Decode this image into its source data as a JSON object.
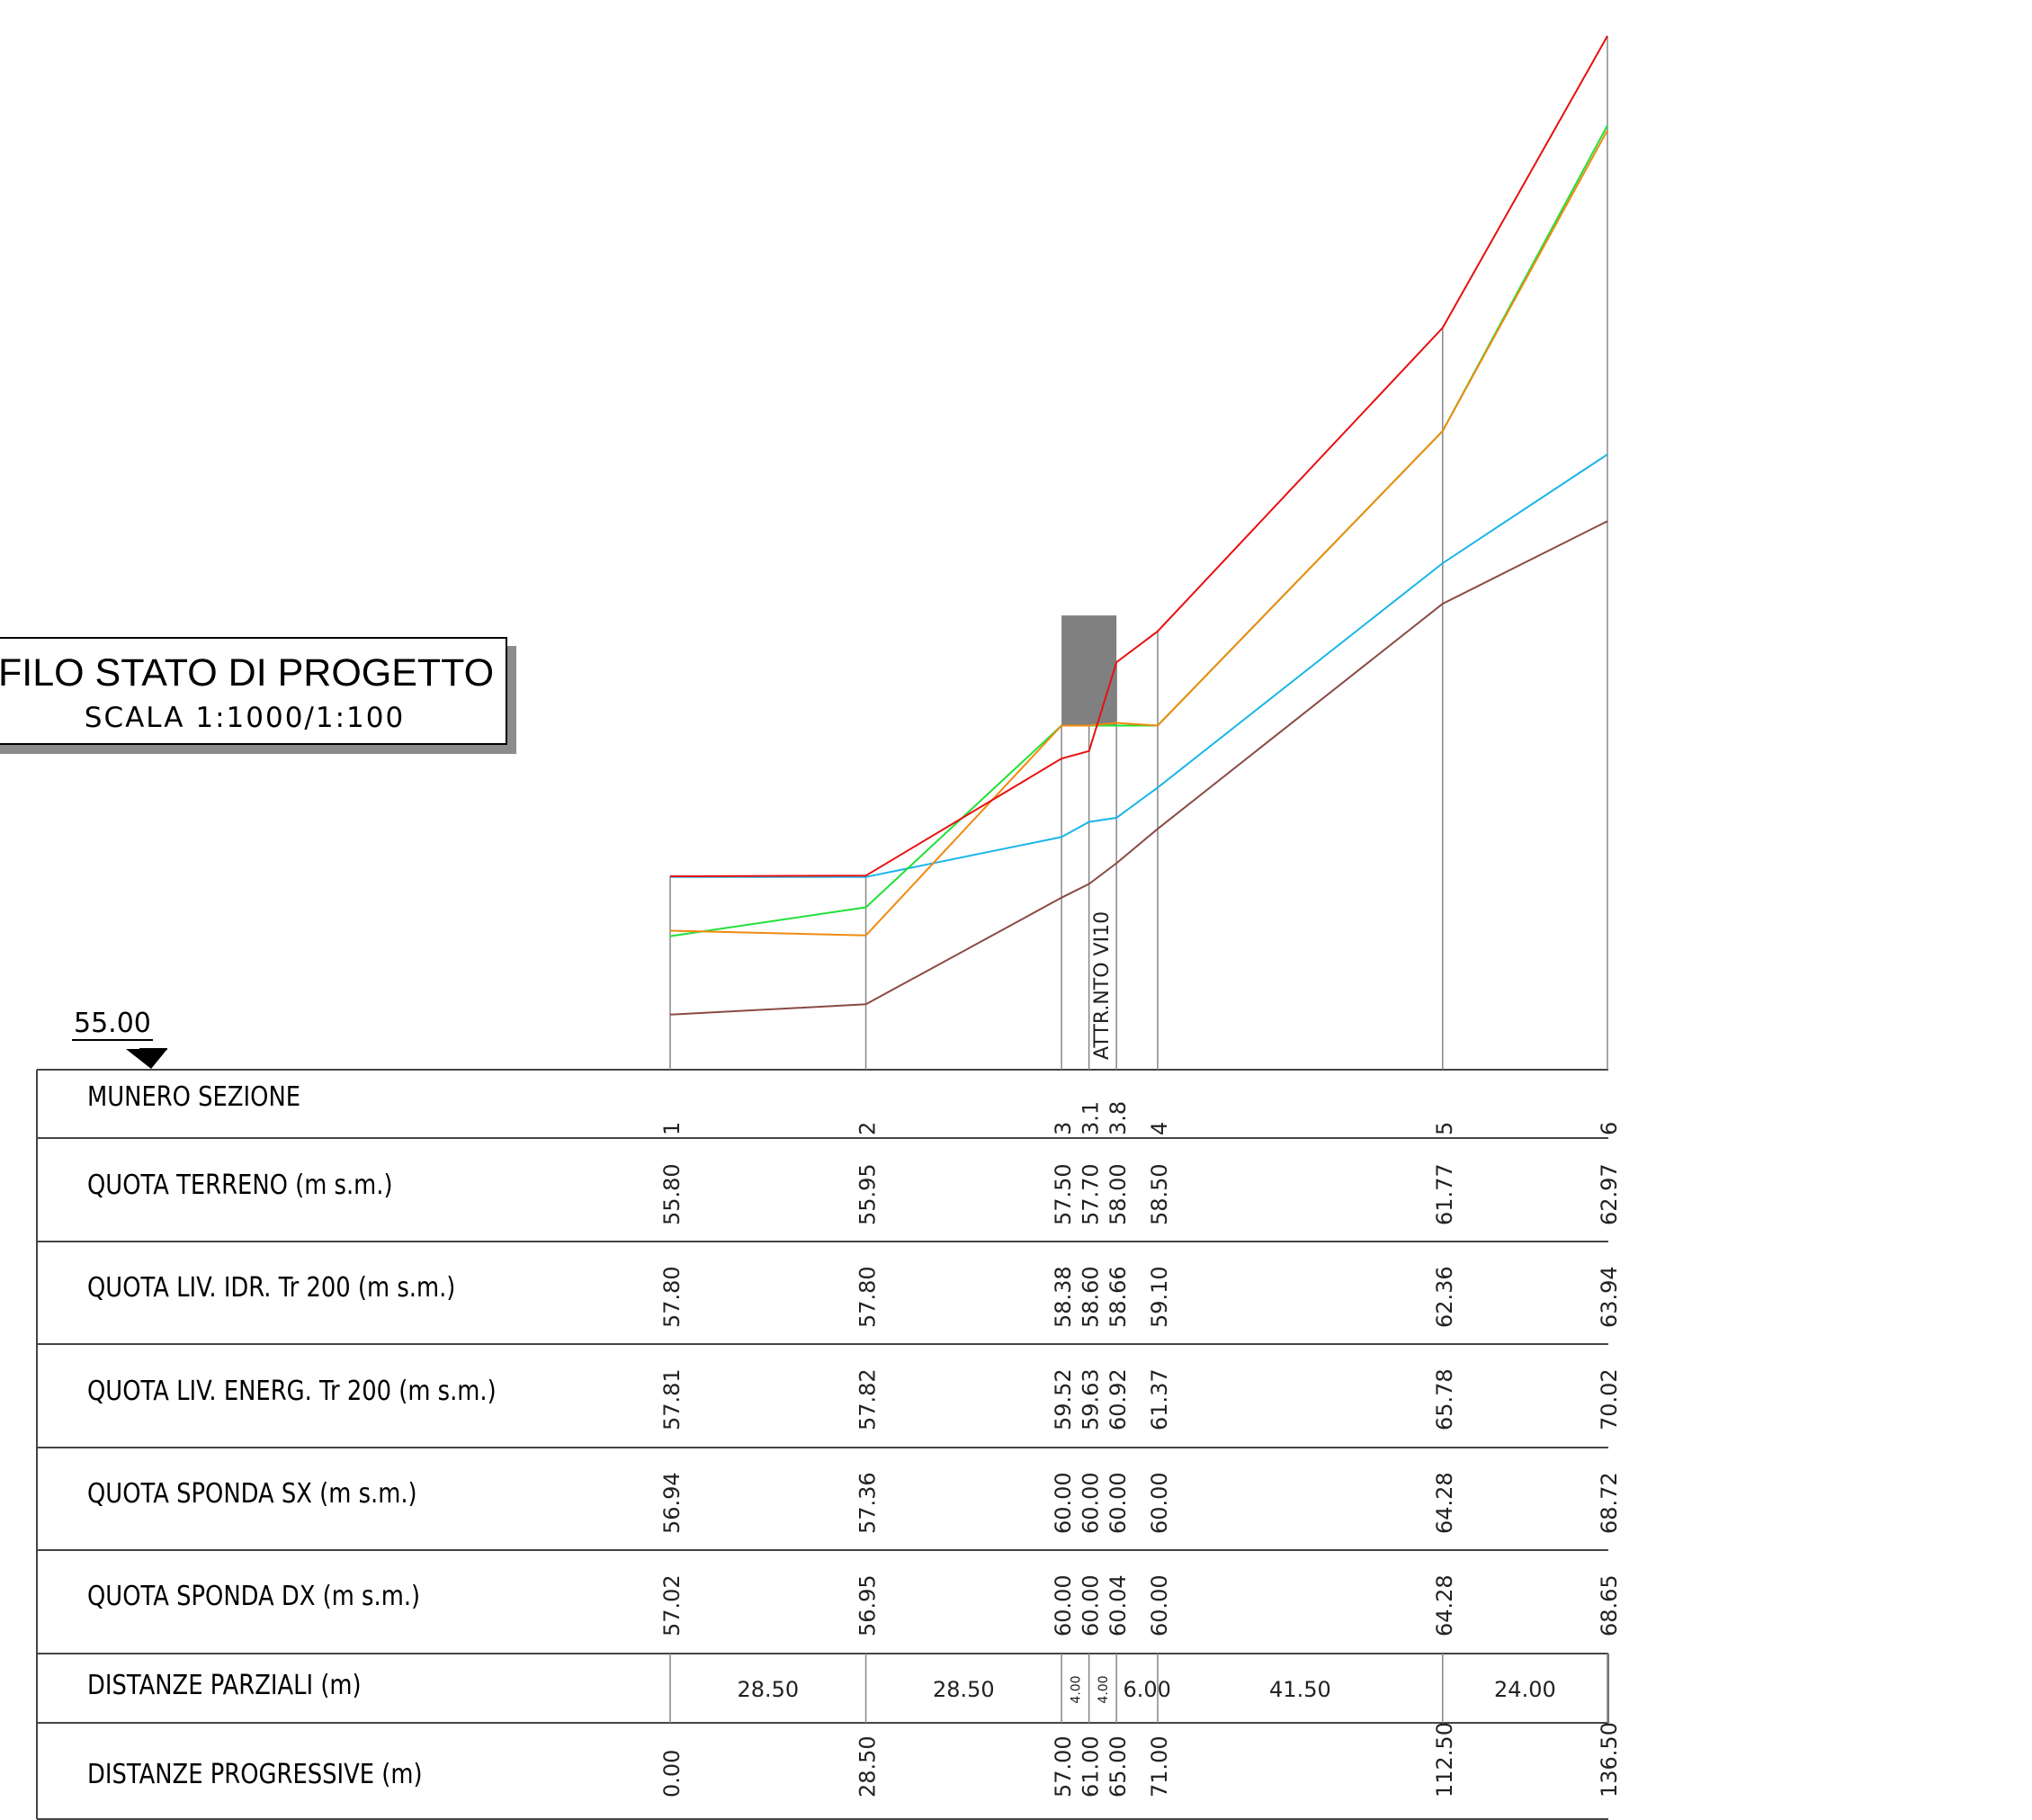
{
  "title": {
    "main": "FILO STATO DI PROGETTO",
    "scale": "SCALA  1:1000/1:100"
  },
  "reference_level": "55.00",
  "structure_label": "ATTR.NTO  VI10",
  "row_labels": {
    "sezione": "MUNERO  SEZIONE",
    "terreno": "QUOTA  TERRENO  (m  s.m.)",
    "idr": "QUOTA  LIV.  IDR.  Tr  200  (m  s.m.)",
    "energ": "QUOTA  LIV.  ENERG.  Tr  200  (m  s.m.)",
    "sx": "QUOTA  SPONDA  SX  (m  s.m.)",
    "dx": "QUOTA  SPONDA  DX  (m  s.m.)",
    "parziali": "DISTANZE  PARZIALI  (m)",
    "progressive": "DISTANZE  PROGRESSIVE  (m)"
  },
  "colors": {
    "terreno": "#8b4a44",
    "idr": "#1ab6e8",
    "energ": "#e81010",
    "sx": "#22e03a",
    "dx": "#f08a10",
    "structure": "#808080",
    "grid": "#888888"
  },
  "sections": [
    {
      "id": "1",
      "progressive": "0.00",
      "terreno": "55.80",
      "idr": "57.80",
      "energ": "57.81",
      "sx": "56.94",
      "dx": "57.02"
    },
    {
      "id": "2",
      "progressive": "28.50",
      "terreno": "55.95",
      "idr": "57.80",
      "energ": "57.82",
      "sx": "57.36",
      "dx": "56.95"
    },
    {
      "id": "3",
      "progressive": "57.00",
      "terreno": "57.50",
      "idr": "58.38",
      "energ": "59.52",
      "sx": "60.00",
      "dx": "60.00"
    },
    {
      "id": "3.1",
      "progressive": "61.00",
      "terreno": "57.70",
      "idr": "58.60",
      "energ": "59.63",
      "sx": "60.00",
      "dx": "60.00"
    },
    {
      "id": "3.8",
      "progressive": "65.00",
      "terreno": "58.00",
      "idr": "58.66",
      "energ": "60.92",
      "sx": "60.00",
      "dx": "60.04"
    },
    {
      "id": "4",
      "progressive": "71.00",
      "terreno": "58.50",
      "idr": "59.10",
      "energ": "61.37",
      "sx": "60.00",
      "dx": "60.00"
    },
    {
      "id": "5",
      "progressive": "112.50",
      "terreno": "61.77",
      "idr": "62.36",
      "energ": "65.78",
      "sx": "64.28",
      "dx": "64.28"
    },
    {
      "id": "6",
      "progressive": "136.50",
      "terreno": "62.97",
      "idr": "63.94",
      "energ": "70.02",
      "sx": "68.72",
      "dx": "68.65"
    }
  ],
  "partial_distances": [
    "28.50",
    "28.50",
    "4.00",
    "4.00",
    "6.00",
    "41.50",
    "24.00"
  ],
  "structure": {
    "from_progressive": 57.0,
    "to_progressive": 65.0,
    "bottom_level": 60.0,
    "top_level": 61.6
  }
}
